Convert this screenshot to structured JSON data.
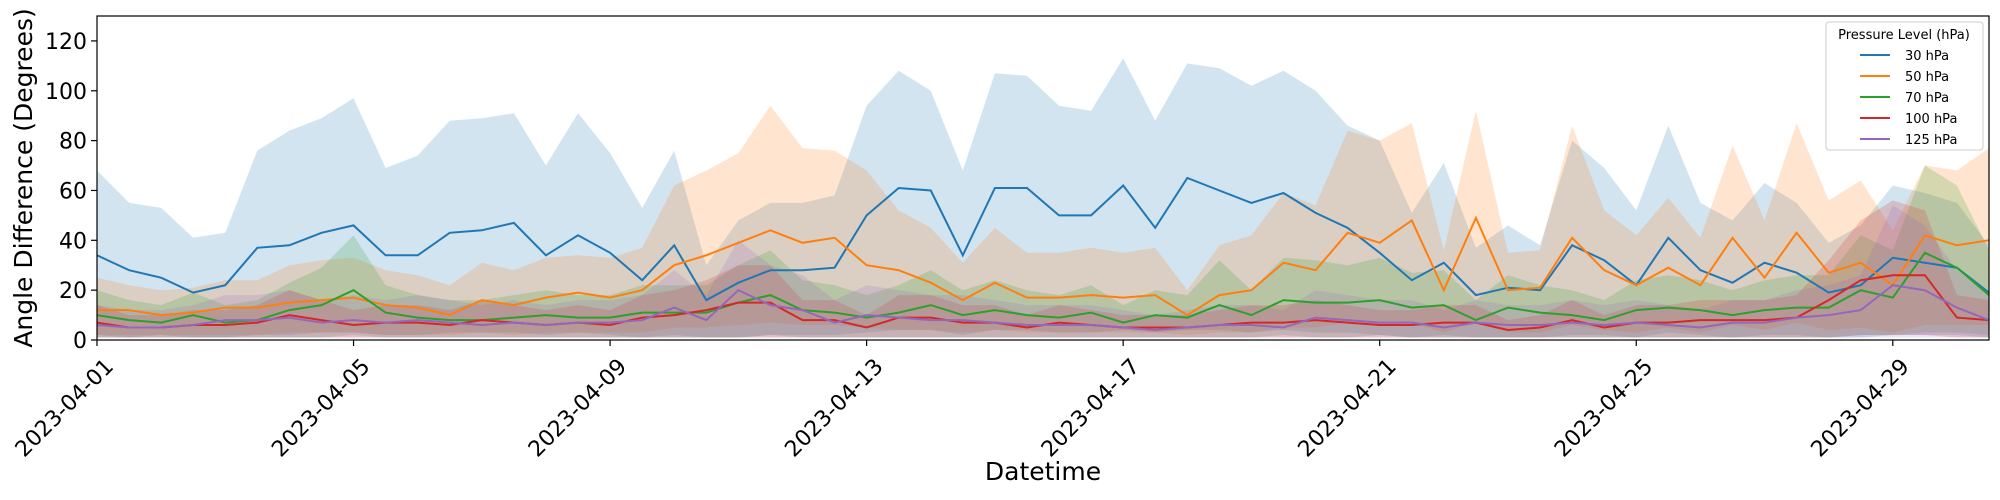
{
  "chart_data": {
    "type": "line",
    "xlabel": "Datetime",
    "ylabel": "Angle Difference (Degrees)",
    "xlim": [
      "2023-04-01",
      "2023-04-30 12:00"
    ],
    "ylim": [
      0,
      130
    ],
    "yticks": [
      0,
      20,
      40,
      60,
      80,
      100,
      120
    ],
    "xticks": [
      "2023-04-01",
      "2023-04-05",
      "2023-04-09",
      "2023-04-13",
      "2023-04-17",
      "2023-04-21",
      "2023-04-25",
      "2023-04-29"
    ],
    "grid": false,
    "legend": {
      "title": "Pressure Level (hPa)",
      "placement": "top-right"
    },
    "x_start": "2023-04-01",
    "x_step_hours": 12,
    "series": [
      {
        "name": "30 hPa",
        "color": "#1f77b4",
        "mean": [
          34,
          28,
          25,
          19,
          22,
          37,
          38,
          43,
          46,
          34,
          34,
          43,
          44,
          47,
          34,
          42,
          35,
          24,
          38,
          16,
          23,
          28,
          28,
          29,
          50,
          61,
          60,
          34,
          61,
          61,
          50,
          50,
          62,
          45,
          65,
          60,
          55,
          59,
          51,
          45,
          35,
          24,
          31,
          18,
          21,
          20,
          38,
          32,
          22,
          41,
          28,
          23,
          31,
          27,
          19,
          22,
          33,
          31,
          29,
          19
        ],
        "upper": [
          68,
          55,
          53,
          41,
          43,
          76,
          84,
          89,
          97,
          69,
          74,
          88,
          89,
          91,
          70,
          91,
          75,
          53,
          76,
          30,
          48,
          55,
          55,
          58,
          94,
          108,
          100,
          68,
          107,
          106,
          94,
          92,
          113,
          88,
          111,
          109,
          102,
          108,
          100,
          86,
          80,
          51,
          71,
          37,
          46,
          38,
          80,
          69,
          52,
          86,
          55,
          48,
          63,
          55,
          39,
          46,
          62,
          59,
          55,
          38
        ],
        "lower": [
          2,
          1,
          2,
          1,
          1,
          2,
          2,
          3,
          3,
          2,
          2,
          3,
          3,
          3,
          2,
          3,
          2,
          1,
          2,
          1,
          1,
          2,
          2,
          2,
          3,
          4,
          4,
          2,
          4,
          4,
          3,
          3,
          4,
          3,
          4,
          4,
          3,
          4,
          3,
          3,
          2,
          1,
          2,
          1,
          1,
          1,
          2,
          2,
          1,
          3,
          2,
          1,
          2,
          2,
          1,
          1,
          2,
          2,
          2,
          1
        ]
      },
      {
        "name": "50 hPa",
        "color": "#ff7f0e",
        "mean": [
          12,
          12,
          10,
          11,
          13,
          13,
          15,
          16,
          17,
          14,
          13,
          10,
          16,
          14,
          17,
          19,
          17,
          20,
          30,
          34,
          39,
          44,
          39,
          41,
          30,
          28,
          23,
          16,
          23,
          17,
          17,
          18,
          17,
          18,
          10,
          18,
          20,
          31,
          28,
          43,
          39,
          48,
          20,
          49,
          20,
          21,
          41,
          28,
          22,
          29,
          22,
          41,
          25,
          43,
          27,
          31,
          22,
          42,
          38,
          40
        ],
        "upper": [
          25,
          22,
          20,
          21,
          24,
          24,
          30,
          32,
          33,
          28,
          26,
          22,
          31,
          28,
          33,
          34,
          33,
          37,
          62,
          68,
          75,
          94,
          77,
          76,
          68,
          52,
          45,
          31,
          45,
          35,
          35,
          37,
          35,
          37,
          20,
          38,
          42,
          59,
          54,
          84,
          80,
          87,
          36,
          92,
          35,
          36,
          86,
          52,
          42,
          57,
          41,
          78,
          48,
          87,
          56,
          64,
          44,
          70,
          68,
          77
        ],
        "lower": [
          2,
          2,
          2,
          2,
          2,
          2,
          3,
          3,
          3,
          2,
          2,
          2,
          3,
          2,
          3,
          3,
          3,
          3,
          5,
          5,
          6,
          7,
          6,
          6,
          5,
          4,
          4,
          3,
          4,
          3,
          3,
          3,
          3,
          3,
          2,
          3,
          3,
          5,
          5,
          7,
          6,
          7,
          3,
          7,
          3,
          3,
          6,
          4,
          3,
          5,
          3,
          6,
          4,
          7,
          4,
          5,
          3,
          6,
          6,
          6
        ]
      },
      {
        "name": "70 hPa",
        "color": "#2ca02c",
        "mean": [
          10,
          8,
          7,
          10,
          7,
          8,
          12,
          14,
          20,
          11,
          9,
          8,
          8,
          9,
          10,
          9,
          9,
          11,
          11,
          11,
          15,
          18,
          12,
          11,
          9,
          11,
          14,
          10,
          12,
          10,
          9,
          11,
          7,
          10,
          9,
          14,
          10,
          16,
          15,
          15,
          16,
          13,
          14,
          8,
          13,
          11,
          10,
          8,
          12,
          13,
          12,
          10,
          12,
          13,
          13,
          20,
          17,
          35,
          29,
          18
        ],
        "upper": [
          20,
          16,
          14,
          19,
          14,
          16,
          23,
          29,
          42,
          22,
          18,
          16,
          16,
          18,
          20,
          18,
          18,
          22,
          22,
          22,
          30,
          36,
          24,
          22,
          18,
          22,
          28,
          20,
          24,
          20,
          18,
          22,
          14,
          20,
          18,
          32,
          20,
          33,
          32,
          30,
          33,
          27,
          28,
          16,
          26,
          22,
          20,
          16,
          24,
          26,
          24,
          20,
          24,
          26,
          26,
          42,
          36,
          70,
          62,
          36
        ],
        "lower": [
          1,
          1,
          1,
          1,
          1,
          1,
          1,
          1,
          2,
          1,
          1,
          1,
          1,
          1,
          1,
          1,
          1,
          1,
          1,
          1,
          1,
          2,
          1,
          1,
          1,
          1,
          1,
          1,
          1,
          1,
          1,
          1,
          1,
          1,
          1,
          1,
          1,
          2,
          1,
          1,
          2,
          1,
          1,
          1,
          1,
          1,
          1,
          1,
          1,
          1,
          1,
          1,
          1,
          1,
          1,
          2,
          2,
          3,
          3,
          2
        ]
      },
      {
        "name": "100 hPa",
        "color": "#d62728",
        "mean": [
          7,
          5,
          5,
          6,
          6,
          7,
          10,
          8,
          6,
          7,
          7,
          6,
          8,
          7,
          6,
          7,
          6,
          9,
          10,
          12,
          15,
          15,
          8,
          8,
          5,
          9,
          9,
          7,
          7,
          5,
          7,
          6,
          5,
          5,
          5,
          6,
          7,
          7,
          8,
          7,
          6,
          6,
          7,
          7,
          4,
          5,
          8,
          5,
          7,
          7,
          8,
          8,
          8,
          9,
          16,
          24,
          26,
          26,
          9,
          8
        ],
        "upper": [
          14,
          10,
          10,
          12,
          12,
          14,
          20,
          16,
          12,
          14,
          14,
          12,
          16,
          14,
          12,
          14,
          12,
          18,
          20,
          24,
          30,
          30,
          16,
          16,
          10,
          18,
          18,
          14,
          14,
          10,
          14,
          12,
          10,
          10,
          10,
          12,
          14,
          14,
          16,
          14,
          12,
          12,
          14,
          14,
          8,
          10,
          16,
          10,
          14,
          14,
          16,
          16,
          16,
          18,
          32,
          48,
          56,
          52,
          18,
          16
        ],
        "lower": [
          1,
          1,
          1,
          1,
          1,
          1,
          1,
          1,
          1,
          1,
          1,
          1,
          1,
          1,
          1,
          1,
          1,
          1,
          1,
          1,
          1,
          1,
          1,
          1,
          1,
          1,
          1,
          1,
          1,
          1,
          1,
          1,
          1,
          1,
          1,
          1,
          1,
          1,
          1,
          1,
          1,
          1,
          1,
          1,
          1,
          1,
          1,
          1,
          1,
          1,
          1,
          1,
          1,
          1,
          1,
          2,
          2,
          2,
          1,
          1
        ]
      },
      {
        "name": "125 hPa",
        "color": "#9467bd",
        "mean": [
          6,
          5,
          5,
          6,
          8,
          8,
          9,
          7,
          8,
          7,
          8,
          7,
          6,
          7,
          6,
          7,
          7,
          8,
          13,
          8,
          20,
          14,
          12,
          7,
          10,
          9,
          8,
          8,
          7,
          6,
          6,
          6,
          5,
          4,
          5,
          6,
          6,
          5,
          9,
          8,
          7,
          7,
          5,
          7,
          6,
          6,
          7,
          6,
          7,
          6,
          5,
          7,
          7,
          9,
          10,
          12,
          22,
          20,
          13,
          8
        ],
        "upper": [
          14,
          12,
          12,
          14,
          18,
          18,
          20,
          16,
          18,
          16,
          18,
          16,
          14,
          16,
          14,
          16,
          16,
          18,
          28,
          18,
          40,
          30,
          26,
          16,
          22,
          20,
          18,
          18,
          16,
          14,
          14,
          14,
          12,
          10,
          12,
          14,
          14,
          12,
          20,
          18,
          16,
          16,
          12,
          16,
          14,
          14,
          16,
          14,
          16,
          14,
          12,
          16,
          16,
          20,
          22,
          26,
          54,
          46,
          28,
          18
        ],
        "lower": [
          1,
          1,
          1,
          1,
          1,
          1,
          1,
          1,
          1,
          1,
          1,
          1,
          1,
          1,
          1,
          1,
          1,
          1,
          1,
          1,
          1,
          1,
          1,
          1,
          1,
          1,
          1,
          1,
          1,
          1,
          1,
          1,
          1,
          1,
          1,
          1,
          1,
          1,
          1,
          1,
          1,
          1,
          1,
          1,
          1,
          1,
          1,
          1,
          1,
          1,
          1,
          1,
          1,
          1,
          1,
          1,
          1,
          1,
          1,
          1
        ]
      }
    ]
  }
}
